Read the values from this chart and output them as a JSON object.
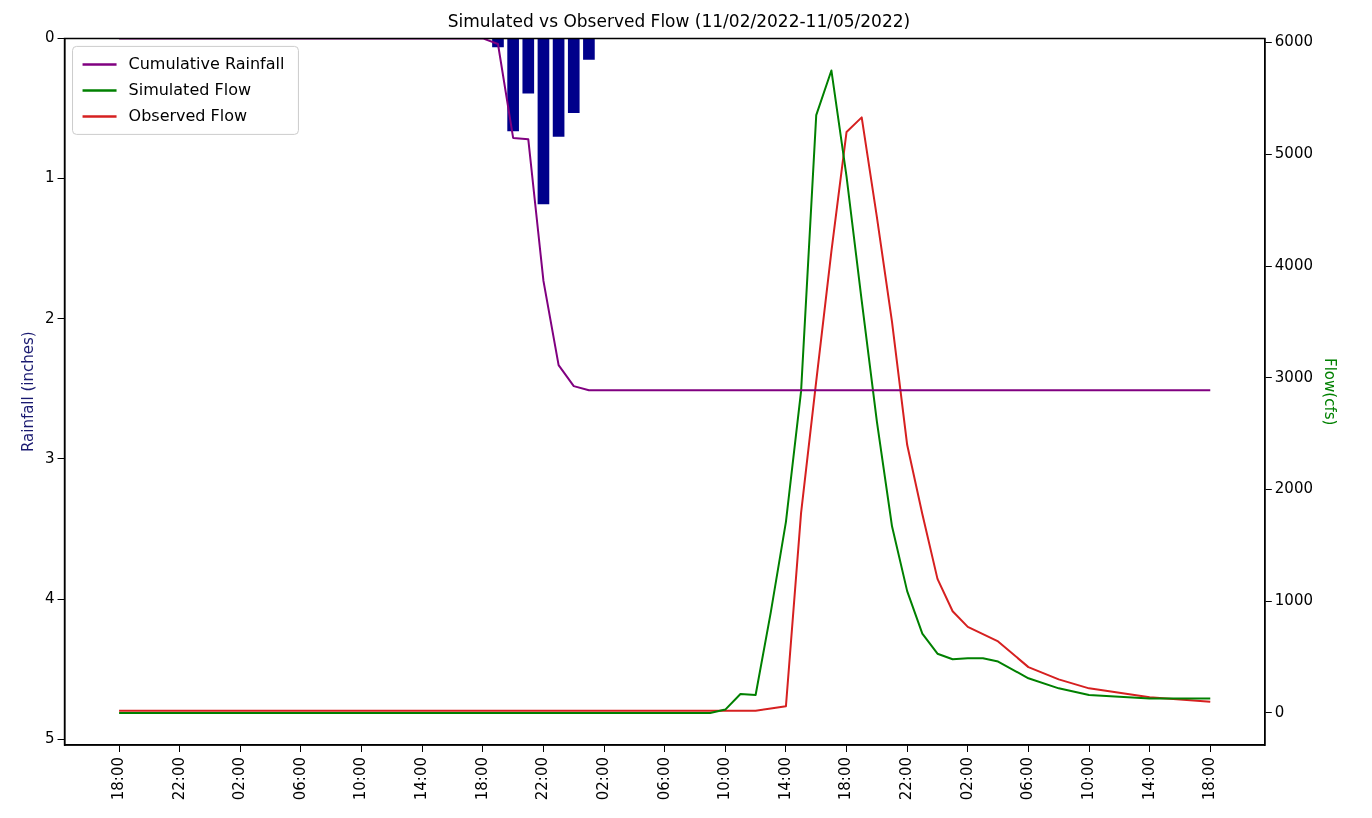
{
  "chart_data": {
    "type": "line",
    "title": "Simulated vs Observed Flow (11/02/2022-11/05/2022)",
    "ylabel": "Rainfall (inches)",
    "y2label": "Flow(cfs)",
    "xlim": [
      "2022-11-02T14:24",
      "2022-11-05T21:36"
    ],
    "xticks": [
      {
        "value": "2022-11-02T18:00",
        "label": "18:00"
      },
      {
        "value": "2022-11-02T22:00",
        "label": "22:00"
      },
      {
        "value": "2022-11-03T02:00",
        "label": "02:00"
      },
      {
        "value": "2022-11-03T06:00",
        "label": "06:00"
      },
      {
        "value": "2022-11-03T10:00",
        "label": "10:00"
      },
      {
        "value": "2022-11-03T14:00",
        "label": "14:00"
      },
      {
        "value": "2022-11-03T18:00",
        "label": "18:00"
      },
      {
        "value": "2022-11-03T22:00",
        "label": "22:00"
      },
      {
        "value": "2022-11-04T02:00",
        "label": "02:00"
      },
      {
        "value": "2022-11-04T06:00",
        "label": "06:00"
      },
      {
        "value": "2022-11-04T10:00",
        "label": "10:00"
      },
      {
        "value": "2022-11-04T14:00",
        "label": "14:00"
      },
      {
        "value": "2022-11-04T18:00",
        "label": "18:00"
      },
      {
        "value": "2022-11-04T22:00",
        "label": "22:00"
      },
      {
        "value": "2022-11-05T02:00",
        "label": "02:00"
      },
      {
        "value": "2022-11-05T06:00",
        "label": "06:00"
      },
      {
        "value": "2022-11-05T10:00",
        "label": "10:00"
      },
      {
        "value": "2022-11-05T14:00",
        "label": "14:00"
      },
      {
        "value": "2022-11-05T18:00",
        "label": "18:00"
      }
    ],
    "ylim": [
      5.04,
      0
    ],
    "yticks": [
      0,
      1,
      2,
      3,
      4,
      5
    ],
    "y2lim": [
      -287,
      6037
    ],
    "y2ticks": [
      0,
      1000,
      2000,
      3000,
      4000,
      5000,
      6000
    ],
    "legend": "top left",
    "grid": false,
    "series": [
      {
        "type": "bar",
        "color": "#00008b",
        "x": [
          "2022-11-03T19:00",
          "2022-11-03T20:00",
          "2022-11-03T21:00",
          "2022-11-03T22:00",
          "2022-11-03T23:00",
          "2022-11-04T00:00",
          "2022-11-04T01:00"
        ],
        "values": [
          0.06,
          0.66,
          0.39,
          1.18,
          0.7,
          0.53,
          0.15
        ]
      },
      {
        "name": "Cumulative Rainfall",
        "color": "#800080",
        "x": [
          "2022-11-02T18:00",
          "2022-11-03T18:00",
          "2022-11-03T19:00",
          "2022-11-03T20:00",
          "2022-11-03T21:00",
          "2022-11-03T22:00",
          "2022-11-03T23:00",
          "2022-11-04T00:00",
          "2022-11-04T01:00",
          "2022-11-05T18:00"
        ],
        "values": [
          0,
          0,
          0.04,
          0.71,
          0.72,
          1.73,
          2.33,
          2.48,
          2.51,
          2.51
        ]
      },
      {
        "name": "Simulated Flow",
        "axis": "y2",
        "color": "#008000",
        "x": [
          "2022-11-02T18:00",
          "2022-11-03T02:00",
          "2022-11-03T10:00",
          "2022-11-03T18:00",
          "2022-11-04T02:00",
          "2022-11-04T09:00",
          "2022-11-04T10:00",
          "2022-11-04T11:00",
          "2022-11-04T12:00",
          "2022-11-04T13:00",
          "2022-11-04T14:00",
          "2022-11-04T15:00",
          "2022-11-04T16:00",
          "2022-11-04T17:00",
          "2022-11-04T18:00",
          "2022-11-04T19:00",
          "2022-11-04T20:00",
          "2022-11-04T21:00",
          "2022-11-04T22:00",
          "2022-11-04T23:00",
          "2022-11-05T00:00",
          "2022-11-05T01:00",
          "2022-11-05T02:00",
          "2022-11-05T03:00",
          "2022-11-05T04:00",
          "2022-11-05T06:00",
          "2022-11-05T08:00",
          "2022-11-05T10:00",
          "2022-11-05T14:00",
          "2022-11-05T18:00"
        ],
        "values": [
          0,
          0,
          0,
          0,
          0,
          0,
          30,
          170,
          160,
          900,
          1710,
          2880,
          5350,
          5750,
          4800,
          3690,
          2610,
          1670,
          1090,
          710,
          530,
          480,
          490,
          490,
          460,
          310,
          220,
          160,
          130,
          130
        ]
      },
      {
        "name": "Observed Flow",
        "axis": "y2",
        "color": "#d62020",
        "x": [
          "2022-11-02T18:00",
          "2022-11-02T22:00",
          "2022-11-03T02:00",
          "2022-11-03T06:00",
          "2022-11-03T10:00",
          "2022-11-03T14:00",
          "2022-11-03T18:00",
          "2022-11-03T22:00",
          "2022-11-04T02:00",
          "2022-11-04T06:00",
          "2022-11-04T10:00",
          "2022-11-04T12:00",
          "2022-11-04T13:00",
          "2022-11-04T14:00",
          "2022-11-04T15:00",
          "2022-11-04T16:00",
          "2022-11-04T17:00",
          "2022-11-04T18:00",
          "2022-11-04T19:00",
          "2022-11-04T20:00",
          "2022-11-04T21:00",
          "2022-11-04T22:00",
          "2022-11-04T23:00",
          "2022-11-05T00:00",
          "2022-11-05T01:00",
          "2022-11-05T02:00",
          "2022-11-05T04:00",
          "2022-11-05T06:00",
          "2022-11-05T08:00",
          "2022-11-05T10:00",
          "2022-11-05T14:00",
          "2022-11-05T18:00"
        ],
        "values": [
          20,
          20,
          20,
          20,
          20,
          20,
          20,
          20,
          20,
          20,
          20,
          20,
          40,
          60,
          1790,
          2970,
          4130,
          5200,
          5330,
          4440,
          3500,
          2400,
          1780,
          1200,
          910,
          770,
          640,
          410,
          300,
          220,
          140,
          100
        ]
      }
    ]
  }
}
